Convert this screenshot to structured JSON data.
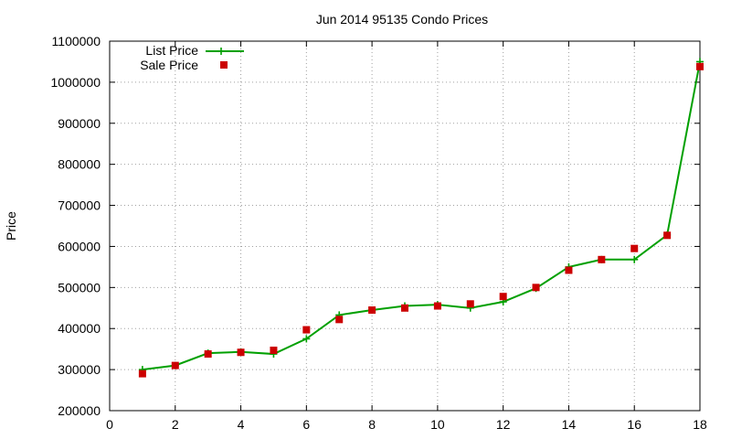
{
  "chart_data": {
    "type": "line",
    "title": "Jun 2014 95135 Condo Prices",
    "xlabel": "",
    "ylabel": "Price",
    "xlim": [
      0,
      18
    ],
    "ylim": [
      200000,
      1100000
    ],
    "x_ticks": [
      0,
      2,
      4,
      6,
      8,
      10,
      12,
      14,
      16,
      18
    ],
    "y_ticks": [
      200000,
      300000,
      400000,
      500000,
      600000,
      700000,
      800000,
      900000,
      1000000,
      1100000
    ],
    "grid": true,
    "legend_position": "top-left",
    "series": [
      {
        "name": "List Price",
        "style": "line-with-plus-markers",
        "color": "#00a000",
        "x": [
          1,
          2,
          3,
          4,
          5,
          6,
          7,
          8,
          9,
          10,
          11,
          12,
          13,
          14,
          15,
          16,
          17,
          18
        ],
        "y": [
          300000,
          310000,
          340000,
          343000,
          338000,
          375000,
          433000,
          445000,
          455000,
          458000,
          450000,
          465000,
          498000,
          550000,
          568000,
          568000,
          628000,
          1050000
        ]
      },
      {
        "name": "Sale Price",
        "style": "square-markers",
        "color": "#cc0000",
        "x": [
          1,
          2,
          3,
          4,
          5,
          6,
          7,
          8,
          9,
          10,
          11,
          12,
          13,
          14,
          15,
          16,
          17,
          18
        ],
        "y": [
          290000,
          310000,
          338000,
          342000,
          347000,
          397000,
          422000,
          445000,
          450000,
          455000,
          460000,
          478000,
          500000,
          542000,
          568000,
          595000,
          627000,
          1038000
        ]
      }
    ]
  }
}
